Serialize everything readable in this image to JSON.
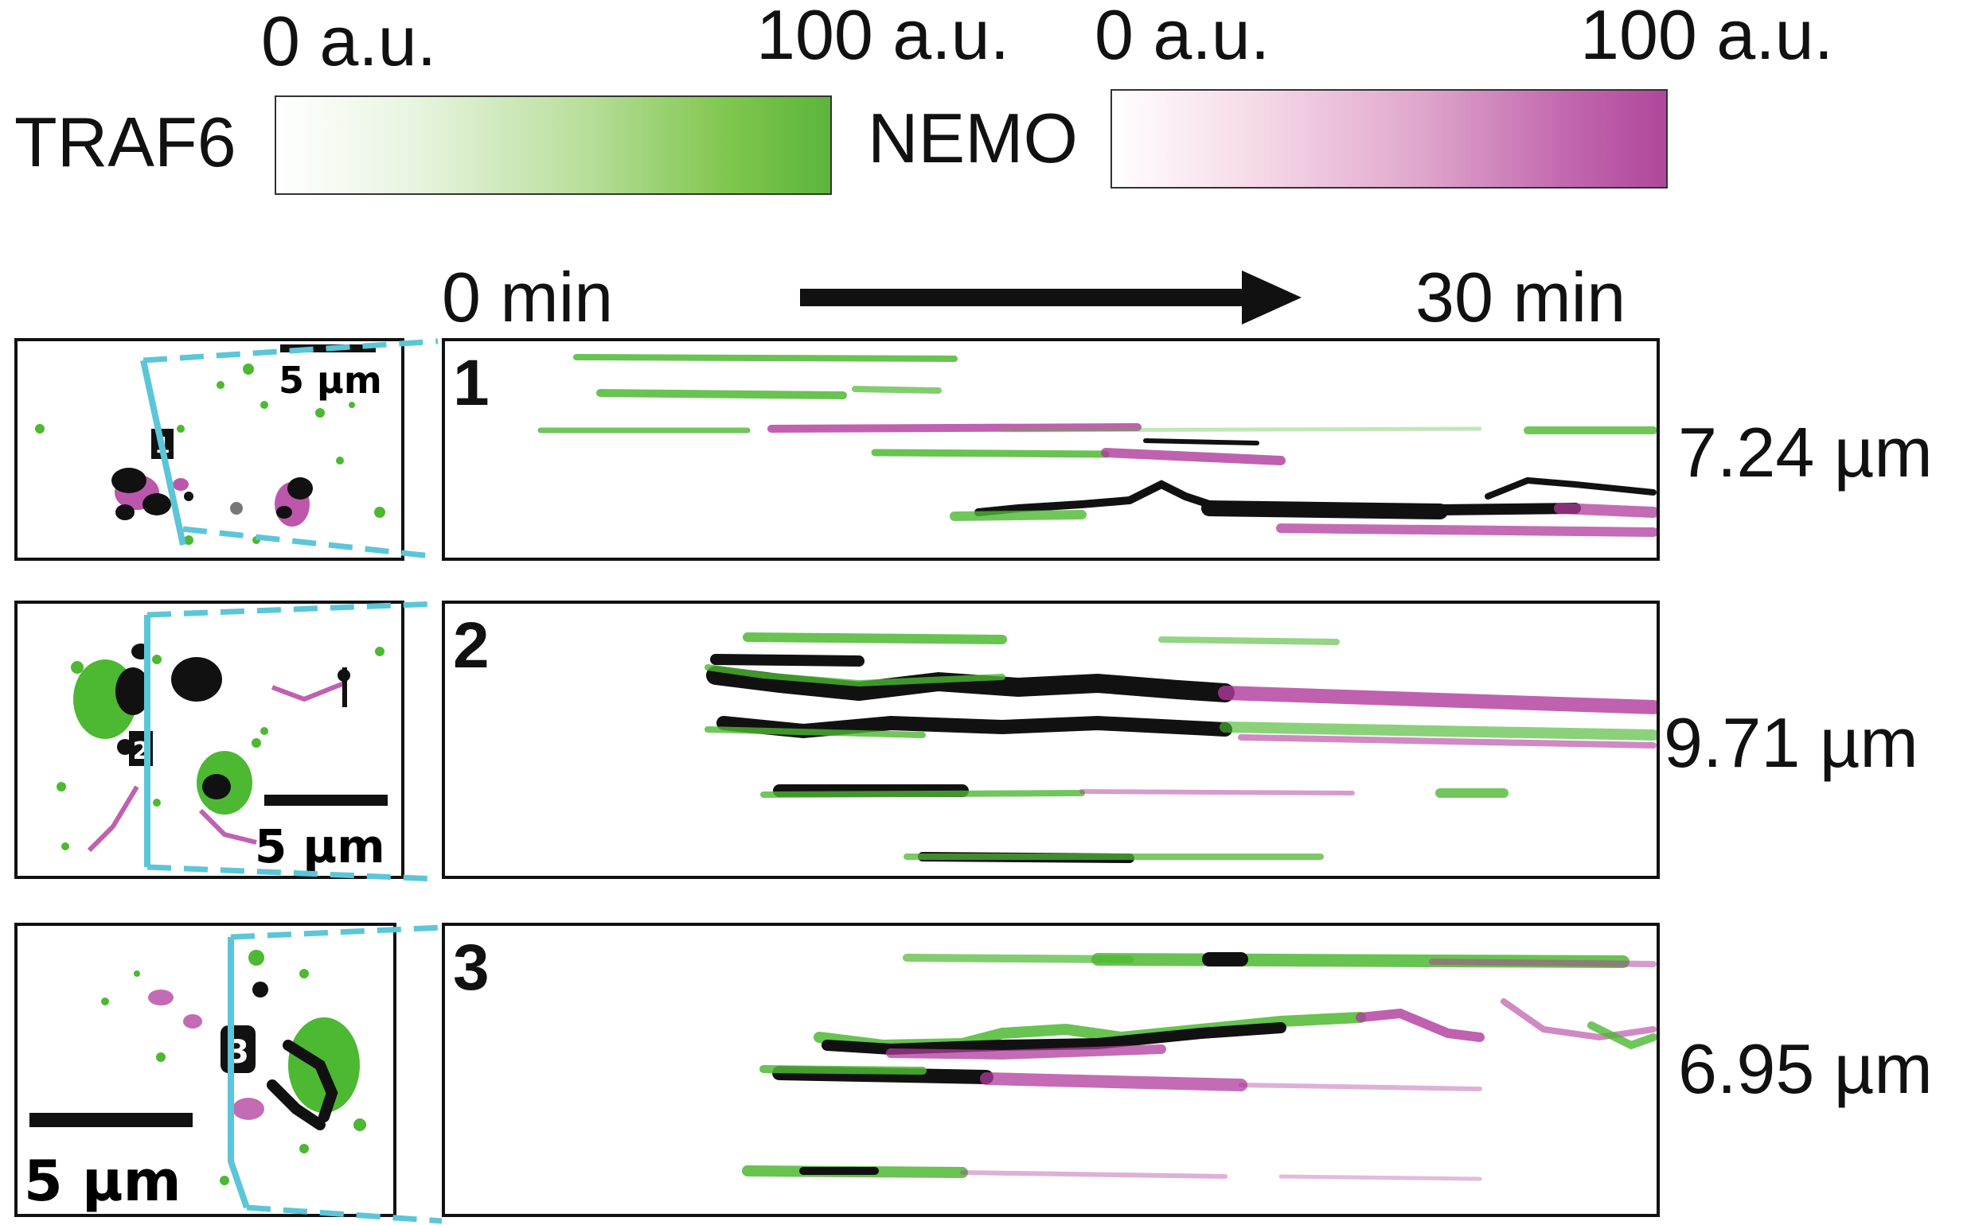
{
  "colorbars": {
    "traf6": {
      "label": "TRAF6",
      "min": "0 a.u.",
      "max": "100 a.u.",
      "color": "#6cbf3d"
    },
    "nemo": {
      "label": "NEMO",
      "min": "0 a.u.",
      "max": "100 a.u.",
      "color": "#b04a9c"
    }
  },
  "timeline": {
    "start": "0 min",
    "end": "30 min"
  },
  "rows": [
    {
      "number": "1",
      "length": "7.24 µm",
      "scalebar": "5 µm"
    },
    {
      "number": "2",
      "length": "9.71 µm",
      "scalebar": "5 µm"
    },
    {
      "number": "3",
      "length": "6.95 µm",
      "scalebar": "5 µm"
    }
  ],
  "colors": {
    "traf6": "#4db832",
    "nemo": "#b03a9c",
    "overlap": "#111111",
    "roi": "#5bc6d8"
  }
}
